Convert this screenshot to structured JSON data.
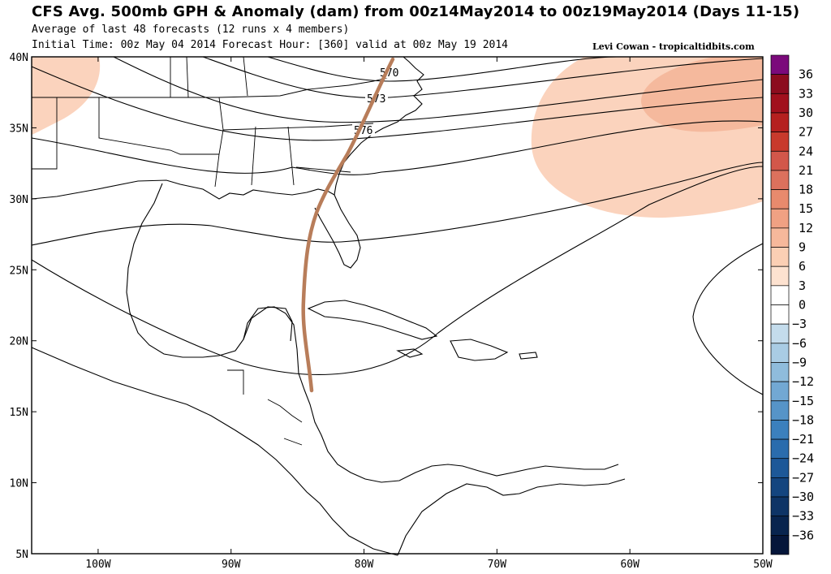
{
  "header": {
    "title": "CFS Avg. 500mb GPH & Anomaly (dam) from 00z14May2014 to 00z19May2014 (Days 11-15)",
    "subtitle": "Average of last 48 forecasts (12 runs x 4 members)",
    "init_line": "Initial Time: 00z May 04 2014 Forecast Hour: [360] valid at 00z May 19 2014",
    "credit": "Levi Cowan - tropicaltidbits.com"
  },
  "map": {
    "lat_range": [
      5,
      40
    ],
    "lon_range": [
      -105,
      -50
    ],
    "lat_ticks": [
      "5N",
      "10N",
      "15N",
      "20N",
      "25N",
      "30N",
      "35N",
      "40N"
    ],
    "lon_ticks": [
      "100W",
      "90W",
      "80W",
      "70W",
      "60W",
      "50W"
    ],
    "contour_labels": [
      "570",
      "573",
      "576"
    ],
    "track_color": "#b87d5a",
    "contour_color": "#000000"
  },
  "colorbar": {
    "labels": [
      "36",
      "33",
      "30",
      "27",
      "24",
      "21",
      "18",
      "15",
      "12",
      "9",
      "6",
      "3",
      "0",
      "-3",
      "-6",
      "-9",
      "-12",
      "-15",
      "-18",
      "-21",
      "-24",
      "-27",
      "-30",
      "-33",
      "-36"
    ],
    "colors": [
      "#7b0a7b",
      "#8c0c1e",
      "#a1101d",
      "#b5201f",
      "#c83a2c",
      "#d2574a",
      "#dc715d",
      "#e88a6d",
      "#f0a183",
      "#f6b89b",
      "#fbcfb4",
      "#fde2d0",
      "#ffffff",
      "#ffffff",
      "#c4dcec",
      "#a9cce4",
      "#8fbcdc",
      "#72a8d3",
      "#5694c8",
      "#3b80bd",
      "#2a6cad",
      "#1d5898",
      "#14457f",
      "#0e3466",
      "#08244e",
      "#05163a"
    ]
  }
}
